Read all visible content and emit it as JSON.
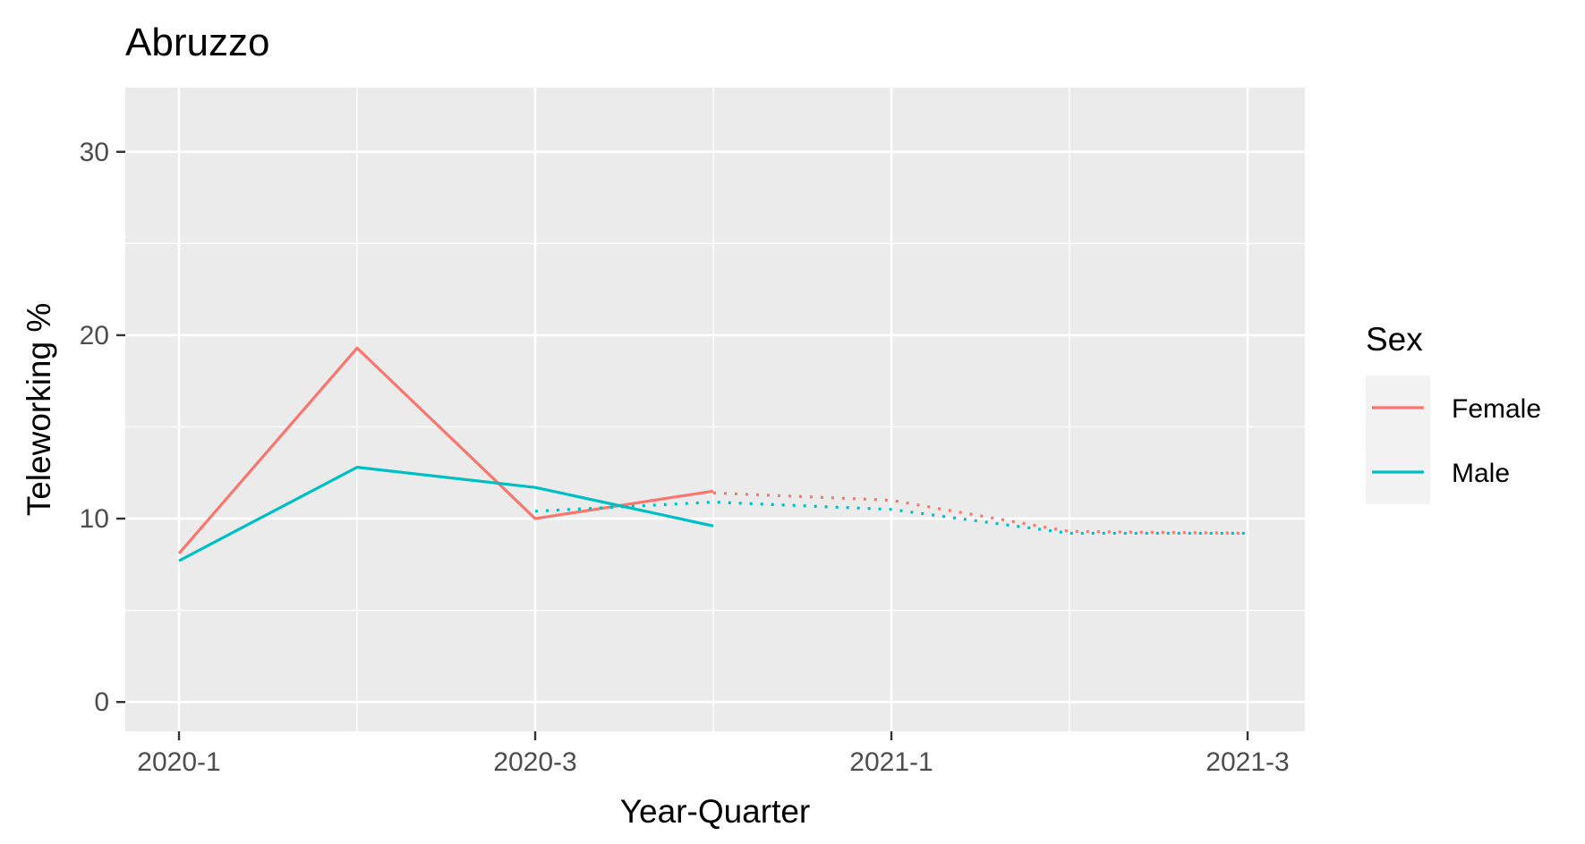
{
  "chart_data": {
    "type": "line",
    "title": "Abruzzo",
    "xlabel": "Year-Quarter",
    "ylabel": "Teleworking %",
    "x_categories": [
      "2020-1",
      "2020-2",
      "2020-3",
      "2020-4",
      "2021-1",
      "2021-2",
      "2021-3"
    ],
    "x_tick_labels": [
      "2020-1",
      "2020-3",
      "2021-1",
      "2021-3"
    ],
    "x_tick_categories": [
      "2020-1",
      "2020-3",
      "2021-1",
      "2021-3"
    ],
    "y_ticks": [
      0,
      10,
      20,
      30
    ],
    "ylim": [
      -1.6,
      33.5
    ],
    "grid": true,
    "legend": {
      "title": "Sex",
      "position": "right"
    },
    "series": [
      {
        "name": "Female",
        "color": "#F8766D",
        "style": "solid",
        "x": [
          "2020-1",
          "2020-2",
          "2020-3",
          "2020-4"
        ],
        "y": [
          8.1,
          19.3,
          10.0,
          11.5
        ]
      },
      {
        "name": "Male",
        "color": "#00BFC4",
        "style": "solid",
        "x": [
          "2020-1",
          "2020-2",
          "2020-3",
          "2020-4"
        ],
        "y": [
          7.7,
          12.8,
          11.7,
          9.6
        ]
      },
      {
        "name": "Female",
        "color": "#F8766D",
        "style": "dotted",
        "x": [
          "2020-4",
          "2021-1",
          "2021-2",
          "2021-3"
        ],
        "y": [
          11.4,
          11.0,
          9.3,
          9.2
        ]
      },
      {
        "name": "Male",
        "color": "#00BFC4",
        "style": "dotted",
        "x": [
          "2020-3",
          "2020-4",
          "2021-1",
          "2021-2",
          "2021-3"
        ],
        "y": [
          10.4,
          10.9,
          10.5,
          9.2,
          9.2
        ]
      }
    ]
  }
}
